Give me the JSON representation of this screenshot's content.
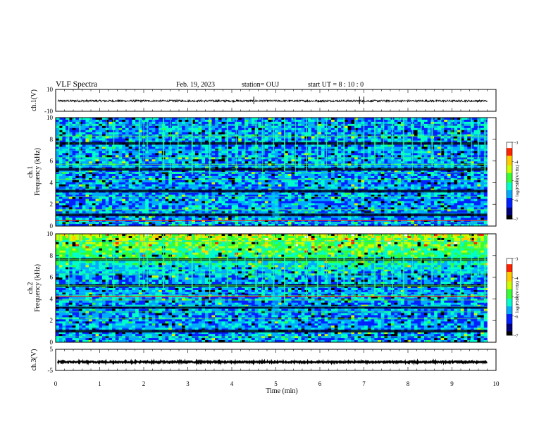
{
  "header": {
    "title": "VLF Spectra",
    "date": "Feb. 19, 2023",
    "station": "station= OUJ",
    "start_ut": "start  UT  =   8  : 10 : 0"
  },
  "chart_data": [
    {
      "type": "line",
      "panel": "ch1-waveform",
      "ylabel": "ch.1(V)",
      "ylim": [
        -10,
        10
      ],
      "yticks": [
        "10",
        "-10"
      ],
      "x": [
        0,
        9.8
      ],
      "series": [
        {
          "values": [
            -0.5,
            -0.5
          ]
        }
      ],
      "color": "#000000"
    },
    {
      "type": "heatmap",
      "panel": "ch1-spectrogram",
      "ylabel": "ch.1\nFrequency (kHz)",
      "ylim": [
        0,
        10
      ],
      "yticks": [
        "0",
        "2",
        "4",
        "6",
        "8",
        "10"
      ],
      "xlim": [
        0,
        9.8
      ],
      "colorbar": {
        "label": "log(PSD)(V²/Hz)",
        "range": [
          -7,
          -3
        ],
        "ticks": [
          "-3",
          "-4",
          "-5",
          "-6",
          "-7"
        ]
      },
      "narrowband_khz": [
        0.3,
        1.2,
        1.5,
        2.7,
        3.6,
        4.3,
        4.9,
        5.5,
        5.7,
        6.3,
        7.0,
        8.3,
        9.3
      ],
      "strong_band_khz": [
        0.5
      ],
      "sferic_times_min": [
        0.08,
        0.3,
        0.55,
        1.15,
        1.32,
        1.9,
        2.0,
        2.08,
        2.45,
        2.6,
        2.78,
        3.1,
        3.3,
        3.5,
        3.9,
        4.1,
        4.3,
        4.55,
        4.7,
        4.95,
        5.2,
        5.45,
        5.7,
        5.95,
        6.15,
        6.4,
        6.55,
        6.8,
        7.0,
        7.25,
        7.45,
        7.65,
        7.9,
        8.1,
        8.3,
        8.55,
        8.75,
        9.0,
        9.2,
        9.45,
        9.6,
        9.75
      ]
    },
    {
      "type": "heatmap",
      "panel": "ch2-spectrogram",
      "ylabel": "ch.2\nFrequency (kHz)",
      "ylim": [
        0,
        10
      ],
      "yticks": [
        "0",
        "2",
        "4",
        "6",
        "8",
        "10"
      ],
      "xlim": [
        0,
        9.8
      ],
      "colorbar": {
        "label": "log(PSD)(V²/Hz)",
        "range": [
          -7,
          -3
        ],
        "ticks": [
          "-3",
          "-4",
          "-5",
          "-6",
          "-7"
        ]
      },
      "narrowband_khz": [
        0.5,
        1.3,
        2.2,
        2.8,
        3.3,
        3.9,
        4.3,
        4.6,
        5.2,
        6.3,
        6.7,
        7.6,
        8.7,
        9.3
      ],
      "strong_band_khz": [
        4.2
      ],
      "sferic_times_min": [
        0.08,
        0.3,
        0.55,
        1.15,
        1.32,
        1.9,
        2.0,
        2.08,
        2.45,
        2.6,
        2.78,
        3.1,
        3.3,
        3.5,
        3.9,
        4.1,
        4.3,
        4.55,
        4.7,
        4.95,
        5.2,
        5.45,
        5.7,
        5.95,
        6.15,
        6.4,
        6.55,
        6.8,
        7.0,
        7.25,
        7.45,
        7.65,
        7.9,
        8.1,
        8.3,
        8.55,
        8.75,
        9.0,
        9.2,
        9.45,
        9.6,
        9.75
      ]
    },
    {
      "type": "line",
      "panel": "ch3-waveform",
      "ylabel": "ch.3(V)",
      "ylim": [
        -5,
        5
      ],
      "yticks": [
        "5",
        "-5"
      ],
      "x": [
        0,
        9.8
      ],
      "series": [
        {
          "values": [
            -1,
            -1
          ]
        }
      ],
      "color": "#000000"
    }
  ],
  "x_axis": {
    "label": "Time  (min)",
    "ticks": [
      "0",
      "1",
      "2",
      "3",
      "4",
      "5",
      "6",
      "7",
      "8",
      "9",
      "10"
    ],
    "range": [
      0,
      10
    ]
  },
  "colormap": {
    "stops": [
      "#000000",
      "#00007a",
      "#0022ff",
      "#00aaff",
      "#00ffcc",
      "#33ff33",
      "#ccff00",
      "#ffcc00",
      "#ff2200",
      "#ffffff"
    ]
  }
}
